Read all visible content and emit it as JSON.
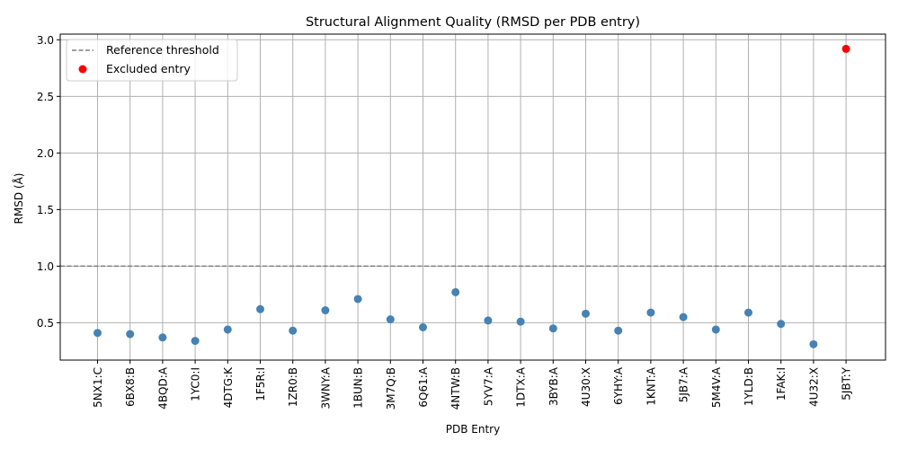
{
  "chart_data": {
    "type": "scatter",
    "title": "Structural Alignment Quality (RMSD per PDB entry)",
    "xlabel": "PDB Entry",
    "ylabel": "RMSD (Å)",
    "ylim": [
      0.17,
      3.05
    ],
    "yticks": [
      0.5,
      1.0,
      1.5,
      2.0,
      2.5,
      3.0
    ],
    "ytick_labels": [
      "0.5",
      "1.0",
      "1.5",
      "2.0",
      "2.5",
      "3.0"
    ],
    "grid": true,
    "legend_position": "top-left",
    "categories": [
      "5NX1:C",
      "6BX8:B",
      "4BQD:A",
      "1YC0:I",
      "4DTG:K",
      "1F5R:I",
      "1ZR0:B",
      "3WNY:A",
      "1BUN:B",
      "3M7Q:B",
      "6Q61:A",
      "4NTW:B",
      "5YV7:A",
      "1DTX:A",
      "3BYB:A",
      "4U30:X",
      "6YHY:A",
      "1KNT:A",
      "5JB7:A",
      "5M4V:A",
      "1YLD:B",
      "1FAK:I",
      "4U32:X",
      "5JBT:Y"
    ],
    "series": [
      {
        "name": "",
        "color": "#4682b4",
        "values": [
          0.41,
          0.4,
          0.37,
          0.34,
          0.44,
          0.62,
          0.43,
          0.61,
          0.71,
          0.53,
          0.46,
          0.77,
          0.52,
          0.51,
          0.45,
          0.58,
          0.43,
          0.59,
          0.55,
          0.44,
          0.59,
          0.49,
          0.31,
          null
        ]
      },
      {
        "name": "Excluded entry",
        "color": "#ff0000",
        "values": [
          null,
          null,
          null,
          null,
          null,
          null,
          null,
          null,
          null,
          null,
          null,
          null,
          null,
          null,
          null,
          null,
          null,
          null,
          null,
          null,
          null,
          null,
          null,
          2.92
        ]
      }
    ],
    "reference_line": {
      "name": "Reference threshold",
      "y": 1.0,
      "color": "#808080",
      "style": "dashed"
    },
    "grid_color": "#b0b0b0"
  }
}
